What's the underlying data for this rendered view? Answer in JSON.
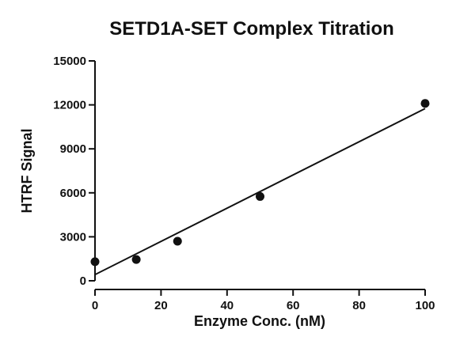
{
  "chart_data": {
    "type": "scatter",
    "title": "SETD1A-SET Complex Titration",
    "xlabel": "Enzyme Conc. (nM)",
    "ylabel": "HTRF Signal",
    "xlim": [
      0,
      100
    ],
    "ylim": [
      0,
      15000
    ],
    "x_ticks": [
      "0",
      "20",
      "40",
      "60",
      "80",
      "100"
    ],
    "y_ticks": [
      "0",
      "3000",
      "6000",
      "9000",
      "12000",
      "15000"
    ],
    "series": [
      {
        "points": [
          {
            "x": 0,
            "y": 1300
          },
          {
            "x": 12.5,
            "y": 1450
          },
          {
            "x": 25,
            "y": 2700
          },
          {
            "x": 50,
            "y": 5750
          },
          {
            "x": 100,
            "y": 12100
          }
        ]
      }
    ],
    "fit_line": {
      "x": [
        0,
        100
      ],
      "y": [
        420,
        11750
      ]
    },
    "grid": false,
    "colors": {
      "marker": "#111111",
      "line": "#111111"
    }
  }
}
